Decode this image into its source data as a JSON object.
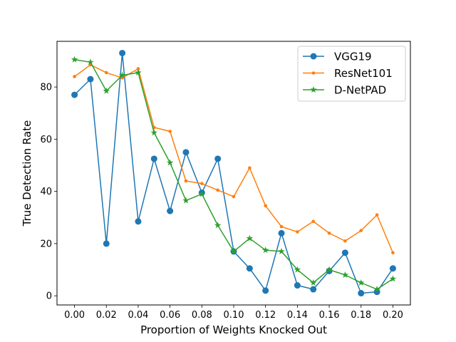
{
  "chart_data": {
    "type": "line",
    "title": "",
    "xlabel": "Proportion of Weights Knocked Out",
    "ylabel": "True Detection Rate",
    "xlim": [
      -0.011,
      0.211
    ],
    "ylim": [
      -3.5,
      97.5
    ],
    "x": [
      0.0,
      0.01,
      0.02,
      0.03,
      0.04,
      0.05,
      0.06,
      0.07,
      0.08,
      0.09,
      0.1,
      0.11,
      0.12,
      0.13,
      0.14,
      0.15,
      0.16,
      0.17,
      0.18,
      0.19,
      0.2
    ],
    "xticks": [
      0.0,
      0.02,
      0.04,
      0.06,
      0.08,
      0.1,
      0.12,
      0.14,
      0.16,
      0.18,
      0.2
    ],
    "xtick_labels": [
      "0.00",
      "0.02",
      "0.04",
      "0.06",
      "0.08",
      "0.10",
      "0.12",
      "0.14",
      "0.16",
      "0.18",
      "0.20"
    ],
    "yticks": [
      0,
      20,
      40,
      60,
      80
    ],
    "ytick_labels": [
      "0",
      "20",
      "40",
      "60",
      "80"
    ],
    "legend_position": "top-right",
    "series": [
      {
        "name": "VGG19",
        "color": "#1f77b4",
        "marker": "circle",
        "values": [
          77,
          83,
          20,
          93,
          28.5,
          52.5,
          32.5,
          55,
          39.5,
          52.5,
          17,
          10.5,
          2,
          24,
          4,
          2.5,
          9.5,
          16.5,
          1,
          1.5,
          10.5
        ]
      },
      {
        "name": "ResNet101",
        "color": "#ff7f0e",
        "marker": "point",
        "values": [
          84,
          88.5,
          85.5,
          83.5,
          87,
          64.5,
          63,
          44,
          43,
          40.5,
          38,
          49,
          34.5,
          26.5,
          24.5,
          28.5,
          24,
          21,
          25,
          31,
          16.5
        ]
      },
      {
        "name": "D-NetPAD",
        "color": "#2ca02c",
        "marker": "star",
        "values": [
          90.5,
          89.5,
          78.5,
          84.5,
          85.5,
          62.5,
          51,
          36.5,
          39,
          27,
          17,
          22,
          17.5,
          17,
          10,
          5,
          10,
          8,
          5,
          2.5,
          6.5
        ]
      }
    ]
  }
}
